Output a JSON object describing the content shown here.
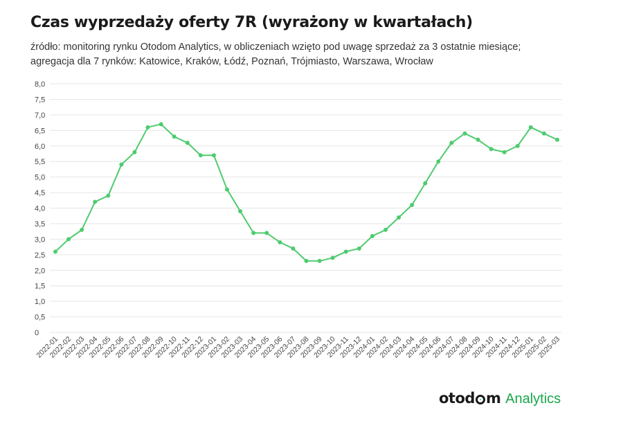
{
  "header": {
    "title": "Czas wyprzedaży oferty 7R (wyrażony w kwartałach)",
    "subtitle_line1": "źródło: monitoring rynku Otodom Analytics, w obliczeniach wzięto pod uwagę sprzedaż za 3 ostatnie miesiące;",
    "subtitle_line2": "agregacja dla 7 rynków: Katowice, Kraków, Łódź, Poznań, Trójmiasto, Warszawa, Wrocław"
  },
  "logo": {
    "part1": "otod",
    "part2": "m",
    "part3": "Analytics"
  },
  "colors": {
    "line": "#4ecb6e",
    "grid": "#e6e6e6",
    "brand_green": "#19a64a"
  },
  "chart_data": {
    "type": "line",
    "title": "Czas wyprzedaży oferty 7R (wyrażony w kwartałach)",
    "xlabel": "",
    "ylabel": "",
    "ylim": [
      0,
      8
    ],
    "grid": true,
    "legend": "none",
    "y_ticks": [
      "0",
      "0,5",
      "1,0",
      "1,5",
      "2,0",
      "2,5",
      "3,0",
      "3,5",
      "4,0",
      "4,5",
      "5,0",
      "5,5",
      "6,0",
      "6,5",
      "7,0",
      "7,5",
      "8,0"
    ],
    "categories": [
      "2022-01",
      "2022-02",
      "2022-03",
      "2022-04",
      "2022-05",
      "2022-06",
      "2022-07",
      "2022-08",
      "2022-09",
      "2022-10",
      "2022-11",
      "2022-12",
      "2023-01",
      "2023-02",
      "2023-03",
      "2023-04",
      "2023-05",
      "2023-06",
      "2023-07",
      "2023-08",
      "2023-09",
      "2023-10",
      "2023-11",
      "2023-12",
      "2024-01",
      "2024-02",
      "2024-03",
      "2024-04",
      "2024-05",
      "2024-06",
      "2024-07",
      "2024-08",
      "2024-09",
      "2024-10",
      "2024-11",
      "2024-12",
      "2025-01",
      "2025-02",
      "2025-03"
    ],
    "series": [
      {
        "values": [
          2.6,
          3.0,
          3.3,
          4.2,
          4.4,
          5.4,
          5.8,
          6.6,
          6.7,
          6.3,
          6.1,
          5.7,
          5.7,
          4.6,
          3.9,
          3.2,
          3.2,
          2.9,
          2.7,
          2.3,
          2.3,
          2.4,
          2.6,
          2.7,
          3.1,
          3.3,
          3.7,
          4.1,
          4.8,
          5.5,
          6.1,
          6.4,
          6.2,
          5.9,
          5.8,
          6.0,
          6.6,
          6.4,
          6.2
        ]
      }
    ]
  }
}
